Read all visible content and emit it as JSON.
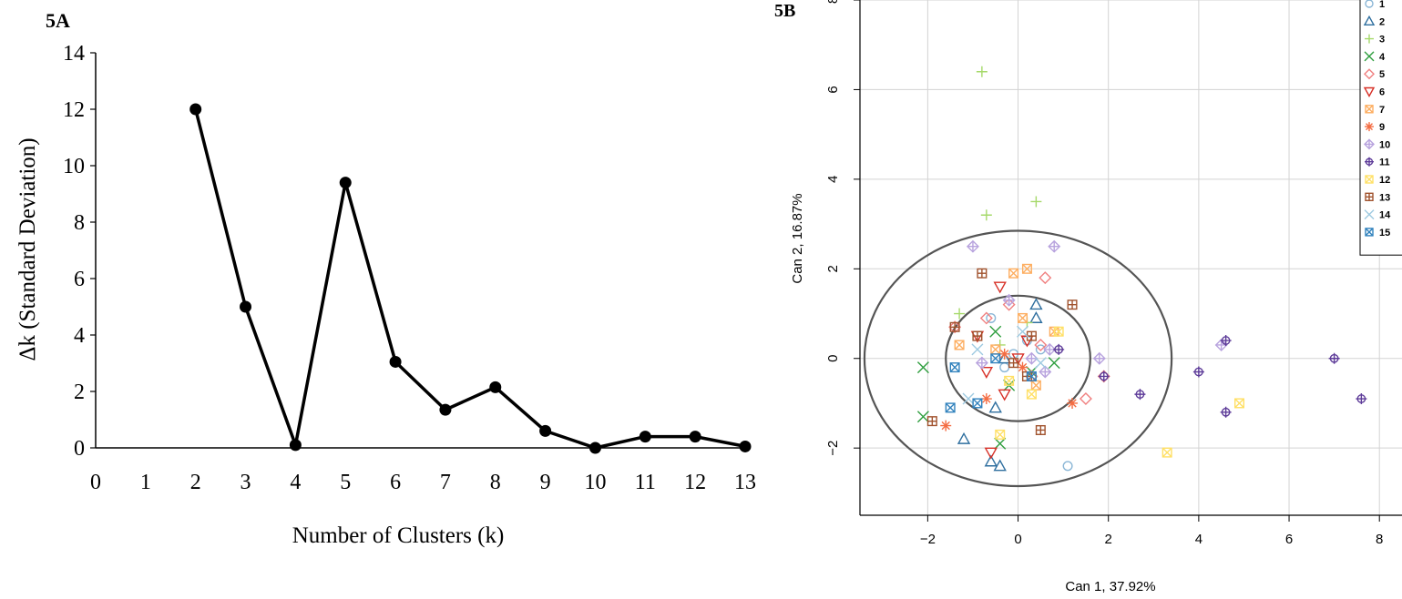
{
  "panel_a_label": "5A",
  "panel_b_label": "5B",
  "chart_data": [
    {
      "type": "line",
      "x": [
        2,
        3,
        4,
        5,
        6,
        7,
        8,
        9,
        10,
        11,
        12,
        13
      ],
      "values": [
        12.0,
        5.0,
        0.1,
        9.4,
        3.05,
        1.35,
        2.15,
        0.6,
        0.0,
        0.4,
        0.4,
        0.05
      ],
      "xlabel": "Number of Clusters (k)",
      "ylabel": "Δk (Standard Deviation)",
      "xlim": [
        0,
        13
      ],
      "ylim": [
        0,
        14
      ],
      "xticks": [
        "0",
        "1",
        "2",
        "3",
        "4",
        "5",
        "6",
        "7",
        "8",
        "9",
        "10",
        "11",
        "12",
        "13"
      ],
      "yticks": [
        "0",
        "2",
        "4",
        "6",
        "8",
        "10",
        "12",
        "14"
      ],
      "grid": false,
      "color": "#000000"
    },
    {
      "type": "scatter",
      "xlabel": "Can 1, 37.92%",
      "ylabel": "Can 2, 16.87%",
      "xlim": [
        -3.5,
        8.5
      ],
      "ylim": [
        -3.5,
        8.0
      ],
      "xticks": [
        "−2",
        "0",
        "2",
        "4",
        "6",
        "8"
      ],
      "yticks": [
        "−2",
        "0",
        "2",
        "4",
        "6",
        "8"
      ],
      "grid": true,
      "legend_position": "top-right",
      "series": [
        {
          "name": "1",
          "marker": "circle",
          "color": "#8ab6d6",
          "points": [
            [
              -0.1,
              0.1
            ],
            [
              0.2,
              0.4
            ],
            [
              -0.3,
              -0.2
            ],
            [
              1.1,
              -2.4
            ],
            [
              0.5,
              0.2
            ],
            [
              -0.6,
              0.9
            ]
          ]
        },
        {
          "name": "2",
          "marker": "triangle",
          "color": "#2f6f9f",
          "points": [
            [
              -0.6,
              -2.3
            ],
            [
              -0.4,
              -2.4
            ],
            [
              -1.2,
              -1.8
            ],
            [
              -0.5,
              -1.1
            ],
            [
              0.4,
              1.2
            ],
            [
              -0.3,
              0.0
            ],
            [
              0.4,
              0.9
            ]
          ]
        },
        {
          "name": "3",
          "marker": "plus",
          "color": "#a6d96a",
          "points": [
            [
              -0.8,
              6.4
            ],
            [
              -0.7,
              3.2
            ],
            [
              0.4,
              3.5
            ],
            [
              -1.3,
              1.0
            ],
            [
              0.2,
              0.8
            ],
            [
              -0.4,
              0.3
            ]
          ]
        },
        {
          "name": "4",
          "marker": "x",
          "color": "#2e9e3e",
          "points": [
            [
              -2.1,
              -0.2
            ],
            [
              -2.1,
              -1.3
            ],
            [
              -0.4,
              -1.9
            ],
            [
              0.8,
              -0.1
            ],
            [
              -0.5,
              0.6
            ],
            [
              0.3,
              -0.3
            ],
            [
              -0.2,
              -0.6
            ]
          ]
        },
        {
          "name": "5",
          "marker": "diamond",
          "color": "#f08080",
          "points": [
            [
              0.6,
              1.8
            ],
            [
              -0.7,
              0.9
            ],
            [
              0.3,
              -0.4
            ],
            [
              -1.4,
              0.7
            ],
            [
              1.9,
              -0.4
            ],
            [
              -0.2,
              1.2
            ],
            [
              0.5,
              0.3
            ],
            [
              1.5,
              -0.9
            ]
          ]
        },
        {
          "name": "6",
          "marker": "triangle-down",
          "color": "#d73027",
          "points": [
            [
              -0.4,
              1.6
            ],
            [
              -0.6,
              -2.1
            ],
            [
              -0.9,
              0.5
            ],
            [
              0.2,
              0.4
            ],
            [
              -0.3,
              -0.8
            ],
            [
              0.0,
              0.0
            ],
            [
              -0.7,
              -0.3
            ]
          ]
        },
        {
          "name": "7",
          "marker": "square-x",
          "color": "#fdae61",
          "points": [
            [
              -0.1,
              1.9
            ],
            [
              0.2,
              2.0
            ],
            [
              -1.3,
              0.3
            ],
            [
              0.8,
              0.6
            ],
            [
              -0.5,
              0.2
            ],
            [
              0.4,
              -0.6
            ],
            [
              0.1,
              0.9
            ]
          ]
        },
        {
          "name": "9",
          "marker": "asterisk",
          "color": "#f46d43",
          "points": [
            [
              -1.6,
              -1.5
            ],
            [
              1.2,
              -1.0
            ],
            [
              -0.7,
              -0.9
            ],
            [
              -0.3,
              0.1
            ],
            [
              0.1,
              -0.2
            ]
          ]
        },
        {
          "name": "10",
          "marker": "diamond-plus",
          "color": "#b8a3de",
          "points": [
            [
              -1.0,
              2.5
            ],
            [
              0.8,
              2.5
            ],
            [
              4.5,
              0.3
            ],
            [
              1.8,
              0.0
            ],
            [
              0.6,
              -0.3
            ],
            [
              -0.2,
              1.3
            ],
            [
              0.3,
              0.0
            ],
            [
              -0.8,
              -0.1
            ],
            [
              0.7,
              0.2
            ]
          ]
        },
        {
          "name": "11",
          "marker": "circle-plus",
          "color": "#5e3c99",
          "points": [
            [
              4.6,
              0.4
            ],
            [
              7.0,
              0.0
            ],
            [
              7.6,
              -0.9
            ],
            [
              2.7,
              -0.8
            ],
            [
              4.6,
              -1.2
            ],
            [
              4.0,
              -0.3
            ],
            [
              1.9,
              -0.4
            ],
            [
              0.9,
              0.2
            ]
          ]
        },
        {
          "name": "12",
          "marker": "square-x",
          "color": "#ffe066",
          "points": [
            [
              3.3,
              -2.1
            ],
            [
              4.9,
              -1.0
            ],
            [
              -0.4,
              -1.7
            ],
            [
              0.9,
              0.6
            ],
            [
              0.3,
              -0.8
            ],
            [
              -0.2,
              -0.5
            ]
          ]
        },
        {
          "name": "13",
          "marker": "square-plus",
          "color": "#a0522d",
          "points": [
            [
              -0.8,
              1.9
            ],
            [
              1.2,
              1.2
            ],
            [
              -1.9,
              -1.4
            ],
            [
              0.5,
              -1.6
            ],
            [
              -1.4,
              0.7
            ],
            [
              -0.1,
              -0.1
            ],
            [
              0.2,
              -0.4
            ],
            [
              -0.9,
              0.5
            ],
            [
              0.3,
              0.5
            ]
          ]
        },
        {
          "name": "14",
          "marker": "x",
          "color": "#9ecae1",
          "points": [
            [
              -0.9,
              0.2
            ],
            [
              0.5,
              -0.1
            ],
            [
              -1.1,
              -0.9
            ],
            [
              0.1,
              0.6
            ]
          ]
        },
        {
          "name": "15",
          "marker": "square-x",
          "color": "#3182bd",
          "points": [
            [
              -1.5,
              -1.1
            ],
            [
              -1.4,
              -0.2
            ],
            [
              -0.5,
              0.0
            ],
            [
              0.3,
              -0.4
            ],
            [
              -0.9,
              -1.0
            ]
          ]
        }
      ],
      "ellipses": [
        {
          "cx": 0,
          "cy": 0,
          "rx": 1.6,
          "ry": 1.4,
          "color": "#555555"
        },
        {
          "cx": 0,
          "cy": 0,
          "rx": 3.4,
          "ry": 2.85,
          "color": "#555555"
        }
      ]
    }
  ]
}
